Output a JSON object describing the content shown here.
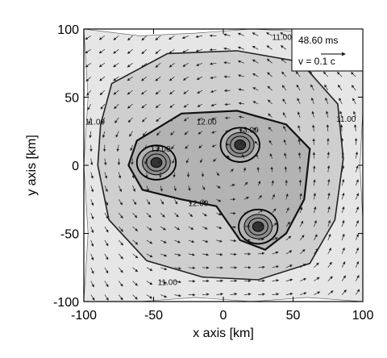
{
  "chart_data": {
    "type": "heatmap",
    "xlabel": "x axis [km]",
    "ylabel": "y axis [km]",
    "xlim": [
      -100,
      100
    ],
    "ylim": [
      -100,
      100
    ],
    "x_ticks": [
      -100,
      -50,
      0,
      50,
      100
    ],
    "y_ticks": [
      -100,
      -50,
      0,
      50,
      100
    ],
    "annotations": {
      "time": "48.60 ms",
      "velocity_scale": "v = 0.1 c"
    },
    "contour_labels": [
      {
        "text": "11.00",
        "x": 42,
        "y": 92
      },
      {
        "text": "12.00",
        "x": -12,
        "y": 30
      },
      {
        "text": "13.00",
        "x": 18,
        "y": 24
      },
      {
        "text": "13.00",
        "x": -45,
        "y": 10
      },
      {
        "text": "12.00",
        "x": -18,
        "y": -30
      },
      {
        "text": "11.00",
        "x": -92,
        "y": 30
      },
      {
        "text": "11.00",
        "x": 88,
        "y": 32
      },
      {
        "text": "11.00",
        "x": -40,
        "y": -88
      }
    ],
    "density_maxima": [
      {
        "x": -48,
        "y": 2
      },
      {
        "x": 12,
        "y": 15
      },
      {
        "x": 25,
        "y": -45
      }
    ],
    "colors": {
      "outer": "#e6e6e6",
      "mid": "#cfcfcf",
      "inner": "#b3b3b3",
      "core": "#8c8c8c"
    }
  }
}
